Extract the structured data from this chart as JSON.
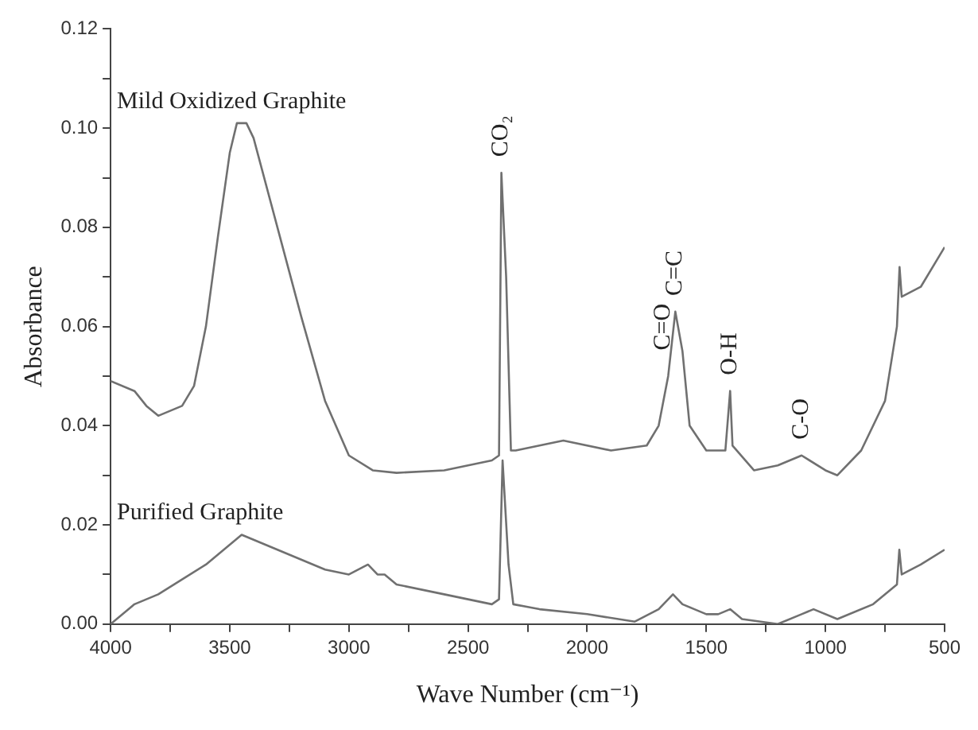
{
  "chart_data": {
    "type": "line",
    "xlabel": "Wave Number (cm⁻¹)",
    "ylabel": "Absorbance",
    "xlim": [
      4000,
      500
    ],
    "xticks": [
      4000,
      {
        "value": 3750,
        "label": null
      },
      3500,
      {
        "value": 3250,
        "label": null
      },
      3000,
      {
        "value": 2750,
        "label": null
      },
      2500,
      {
        "value": 2250,
        "label": null
      },
      2000,
      {
        "value": 1750,
        "label": null
      },
      1500,
      {
        "value": 1250,
        "label": null
      },
      1000,
      {
        "value": 750,
        "label": null
      },
      500
    ],
    "ylim": [
      0,
      0.12
    ],
    "yticks": [
      {
        "value": 0,
        "label": "0.00"
      },
      {
        "value": 0.01,
        "label": null
      },
      {
        "value": 0.02,
        "label": "0.02"
      },
      {
        "value": 0.03,
        "label": null
      },
      {
        "value": 0.04,
        "label": "0.04"
      },
      {
        "value": 0.05,
        "label": null
      },
      {
        "value": 0.06,
        "label": "0.06"
      },
      {
        "value": 0.07,
        "label": null
      },
      {
        "value": 0.08,
        "label": "0.08"
      },
      {
        "value": 0.09,
        "label": null
      },
      {
        "value": 0.1,
        "label": "0.10"
      },
      {
        "value": 0.11,
        "label": null
      },
      {
        "value": 0.12,
        "label": "0.12"
      }
    ],
    "legend": false,
    "marker": "none",
    "line_style": "solid",
    "series": [
      {
        "name": "Mild Oxidized Graphite",
        "color": "#707070",
        "x": [
          4000,
          3900,
          3850,
          3800,
          3750,
          3700,
          3650,
          3600,
          3550,
          3500,
          3470,
          3430,
          3400,
          3300,
          3200,
          3100,
          3000,
          2900,
          2800,
          2600,
          2400,
          2370,
          2360,
          2340,
          2320,
          2300,
          2100,
          1900,
          1750,
          1700,
          1660,
          1630,
          1600,
          1570,
          1500,
          1420,
          1400,
          1390,
          1300,
          1200,
          1100,
          1000,
          950,
          850,
          750,
          700,
          689,
          680,
          600,
          500
        ],
        "values": [
          0.049,
          0.047,
          0.044,
          0.042,
          0.043,
          0.044,
          0.048,
          0.06,
          0.078,
          0.095,
          0.101,
          0.101,
          0.098,
          0.08,
          0.062,
          0.045,
          0.034,
          0.031,
          0.0305,
          0.031,
          0.033,
          0.034,
          0.091,
          0.07,
          0.035,
          0.035,
          0.037,
          0.035,
          0.036,
          0.04,
          0.05,
          0.063,
          0.055,
          0.04,
          0.035,
          0.035,
          0.047,
          0.036,
          0.031,
          0.032,
          0.034,
          0.031,
          0.03,
          0.035,
          0.045,
          0.06,
          0.072,
          0.066,
          0.068,
          0.076
        ]
      },
      {
        "name": "Purified Graphite",
        "color": "#707070",
        "x": [
          4000,
          3900,
          3800,
          3700,
          3600,
          3500,
          3450,
          3400,
          3300,
          3100,
          3000,
          2920,
          2880,
          2850,
          2800,
          2600,
          2400,
          2370,
          2355,
          2330,
          2310,
          2200,
          2000,
          1800,
          1700,
          1640,
          1600,
          1550,
          1500,
          1450,
          1400,
          1350,
          1200,
          1100,
          1050,
          950,
          800,
          700,
          690,
          680,
          600,
          500
        ],
        "values": [
          0,
          0.004,
          0.006,
          0.009,
          0.012,
          0.016,
          0.018,
          0.017,
          0.015,
          0.011,
          0.01,
          0.012,
          0.01,
          0.01,
          0.008,
          0.006,
          0.004,
          0.005,
          0.033,
          0.012,
          0.004,
          0.003,
          0.002,
          0.0005,
          0.003,
          0.006,
          0.004,
          0.003,
          0.002,
          0.002,
          0.003,
          0.001,
          0,
          0.002,
          0.003,
          0.001,
          0.004,
          0.008,
          0.015,
          0.01,
          0.012,
          0.015
        ]
      }
    ],
    "annotations": [
      {
        "text": "CO₂",
        "x": 2360,
        "y": 0.091
      },
      {
        "text": "C=O",
        "x": 1680,
        "y": 0.052
      },
      {
        "text": "C=C",
        "x": 1630,
        "y": 0.063
      },
      {
        "text": "O-H",
        "x": 1400,
        "y": 0.047
      },
      {
        "text": "C-O",
        "x": 1100,
        "y": 0.034
      }
    ]
  }
}
